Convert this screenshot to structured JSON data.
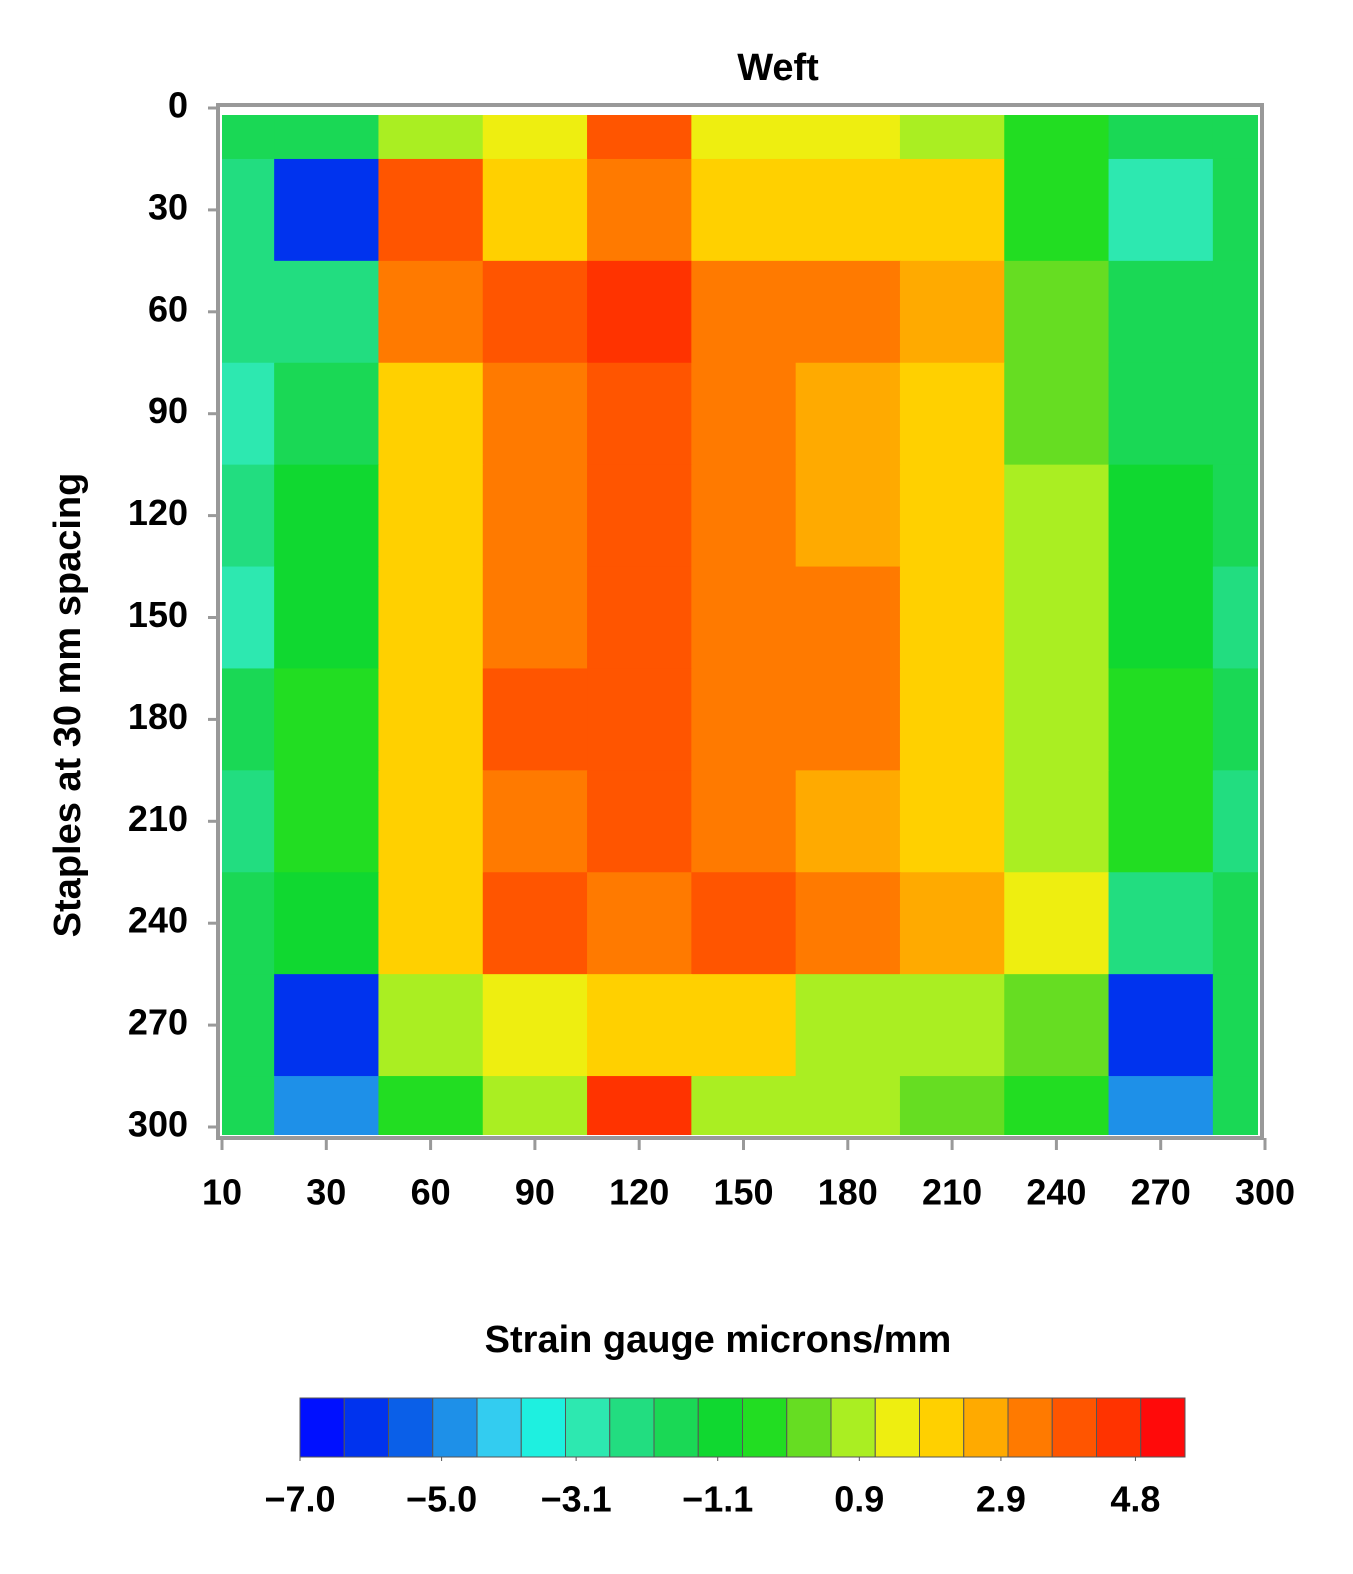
{
  "chart_data": {
    "type": "contour",
    "title": "Weft",
    "y_label": "Staples at 30 mm spacing",
    "categories": [
      "10",
      "30",
      "60",
      "90",
      "120",
      "150",
      "180",
      "210",
      "240",
      "270",
      "300"
    ],
    "y": [
      0,
      30,
      60,
      90,
      120,
      150,
      180,
      210,
      240,
      270,
      300
    ],
    "z": [
      [
        -1.5,
        -1.5,
        0.5,
        1.5,
        4.0,
        1.5,
        1.5,
        1.0,
        -0.5,
        -2.0,
        -1.5
      ],
      [
        -2.5,
        -6.0,
        4.0,
        2.0,
        3.0,
        2.0,
        2.0,
        2.0,
        -0.5,
        -3.0,
        -1.5
      ],
      [
        -2.5,
        -2.5,
        3.5,
        3.7,
        4.3,
        3.5,
        3.0,
        2.5,
        0.0,
        -1.5,
        -1.5
      ],
      [
        -3.0,
        -1.5,
        2.0,
        3.5,
        4.0,
        3.5,
        2.8,
        2.2,
        0.0,
        -1.5,
        -2.0
      ],
      [
        -2.5,
        -1.0,
        2.0,
        3.5,
        3.7,
        3.5,
        2.5,
        2.0,
        0.5,
        -1.0,
        -2.0
      ],
      [
        -3.0,
        -1.0,
        2.0,
        3.5,
        3.7,
        3.5,
        3.0,
        2.0,
        0.5,
        -1.0,
        -2.5
      ],
      [
        -1.5,
        -0.5,
        2.2,
        4.2,
        4.0,
        3.5,
        3.5,
        2.0,
        0.8,
        -0.5,
        -2.0
      ],
      [
        -2.5,
        -0.5,
        2.2,
        3.5,
        3.7,
        3.3,
        2.8,
        2.0,
        0.8,
        -0.5,
        -2.5
      ],
      [
        -1.5,
        -1.0,
        2.0,
        4.0,
        3.5,
        4.0,
        3.0,
        2.8,
        1.5,
        -2.5,
        -1.5
      ],
      [
        -1.5,
        -6.0,
        1.0,
        1.5,
        2.0,
        2.0,
        0.5,
        1.0,
        0.0,
        -6.0,
        -2.0
      ],
      [
        -1.5,
        -5.0,
        -0.5,
        0.5,
        4.5,
        0.5,
        0.5,
        0.0,
        -0.5,
        -5.0,
        -1.5
      ]
    ],
    "ylim": [
      0,
      300
    ],
    "yticks": [
      0,
      30,
      60,
      90,
      120,
      150,
      180,
      210,
      240,
      270,
      300
    ],
    "y_reversed": true,
    "colorbar": {
      "title": "Strain gauge microns/mm",
      "lim": [
        -7.0,
        5.5
      ],
      "ticks": [
        {
          "value": -7.0,
          "label": "−7.0"
        },
        {
          "value": -5.0,
          "label": "−5.0"
        },
        {
          "value": -3.1,
          "label": "−3.1"
        },
        {
          "value": -1.1,
          "label": "−1.1"
        },
        0.9,
        2.9,
        4.8
      ],
      "colors": [
        "#0010ff",
        "#0033ee",
        "#0a5fe8",
        "#1e90e8",
        "#33ccf0",
        "#1ef0e0",
        "#2de8b0",
        "#22dd80",
        "#1ad855",
        "#10d830",
        "#22dd22",
        "#66dd22",
        "#aaee22",
        "#eeee10",
        "#ffd000",
        "#ffaa00",
        "#ff7a00",
        "#ff5500",
        "#ff3300",
        "#ff0a0a"
      ]
    }
  }
}
